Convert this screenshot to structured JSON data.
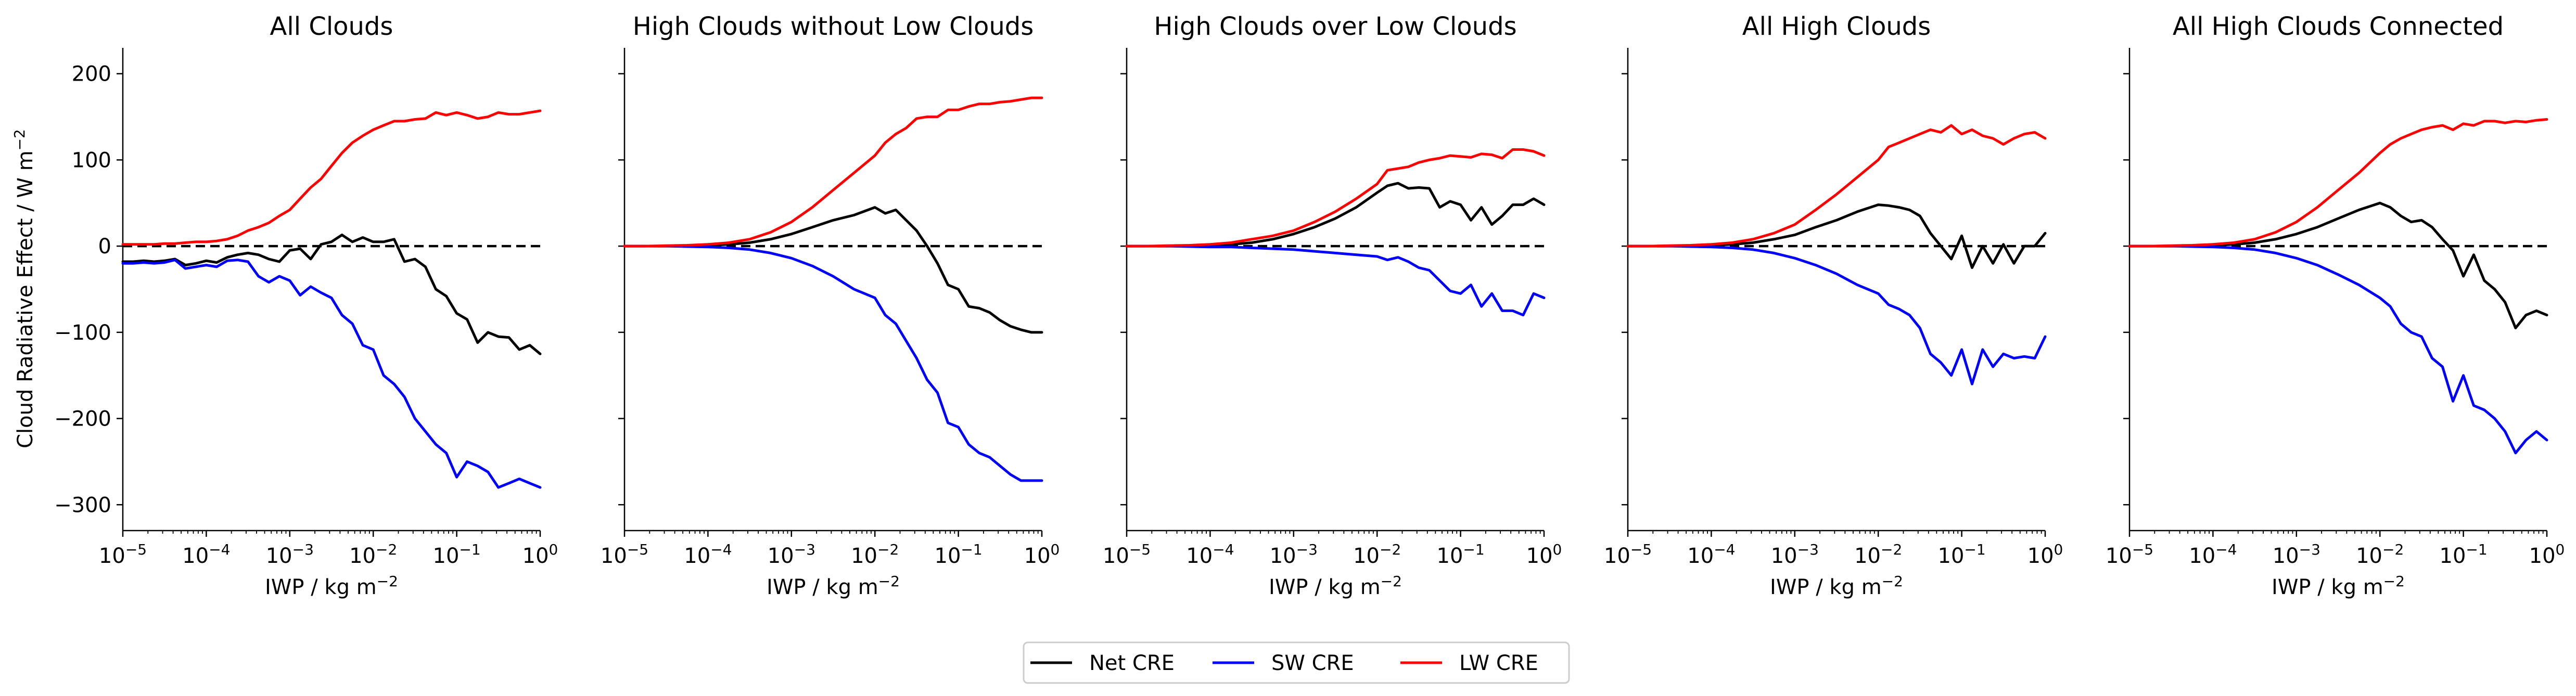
{
  "figure": {
    "ylabel": "Cloud Radiative Effect / W m",
    "ylabel_sup": "−2",
    "xlabel": "IWP / kg m",
    "xlabel_sup": "−2",
    "x_ticks": [
      {
        "base": "10",
        "exp": "−5"
      },
      {
        "base": "10",
        "exp": "−4"
      },
      {
        "base": "10",
        "exp": "−3"
      },
      {
        "base": "10",
        "exp": "−2"
      },
      {
        "base": "10",
        "exp": "−1"
      },
      {
        "base": "10",
        "exp": "0"
      }
    ],
    "y_ticks": [
      "200",
      "100",
      "0",
      "−100",
      "−200",
      "−300"
    ],
    "legend": {
      "placement": "bottom-center",
      "entries": [
        {
          "label": "Net CRE",
          "color": "#000000"
        },
        {
          "label": "SW CRE",
          "color": "#0000ff"
        },
        {
          "label": "LW CRE",
          "color": "#ff0000"
        }
      ]
    }
  },
  "chart_data": [
    {
      "type": "line",
      "title": "All Clouds",
      "xscale": "log",
      "xlim": [
        1e-05,
        1
      ],
      "ylim": [
        -330,
        230
      ],
      "grid": false,
      "zero_line": "dashed",
      "x": [
        1e-05,
        1.33e-05,
        1.78e-05,
        2.37e-05,
        3.16e-05,
        4.22e-05,
        5.62e-05,
        7.5e-05,
        0.0001,
        0.000133,
        0.000178,
        0.000237,
        0.000316,
        0.000422,
        0.000562,
        0.00075,
        0.001,
        0.00133,
        0.00178,
        0.00237,
        0.00316,
        0.00422,
        0.00562,
        0.0075,
        0.01,
        0.0133,
        0.0178,
        0.0237,
        0.0316,
        0.0422,
        0.0562,
        0.075,
        0.1,
        0.133,
        0.178,
        0.237,
        0.316,
        0.422,
        0.562,
        0.75,
        1
      ],
      "series": [
        {
          "name": "Net CRE",
          "color": "#000000",
          "values": [
            -18,
            -18,
            -17,
            -18,
            -17,
            -15,
            -22,
            -20,
            -17,
            -19,
            -13,
            -10,
            -8,
            -10,
            -15,
            -18,
            -5,
            -3,
            -15,
            2,
            5,
            13,
            5,
            10,
            5,
            5,
            8,
            -18,
            -15,
            -24,
            -50,
            -58,
            -78,
            -85,
            -112,
            -100,
            -105,
            -106,
            -120,
            -115,
            -125
          ]
        },
        {
          "name": "SW CRE",
          "color": "#0000ff",
          "values": [
            -20,
            -20,
            -19,
            -20,
            -19,
            -16,
            -26,
            -24,
            -22,
            -24,
            -17,
            -16,
            -18,
            -35,
            -42,
            -35,
            -40,
            -57,
            -47,
            -54,
            -60,
            -80,
            -90,
            -115,
            -120,
            -150,
            -160,
            -175,
            -200,
            -215,
            -230,
            -240,
            -268,
            -250,
            -255,
            -262,
            -280,
            -275,
            -270,
            -275,
            -280
          ]
        },
        {
          "name": "LW CRE",
          "color": "#ff0000",
          "values": [
            2,
            2,
            2,
            2,
            3,
            3,
            4,
            5,
            5,
            6,
            8,
            12,
            18,
            22,
            27,
            35,
            42,
            55,
            68,
            78,
            93,
            108,
            120,
            128,
            135,
            140,
            145,
            145,
            147,
            148,
            155,
            152,
            155,
            152,
            148,
            150,
            155,
            153,
            153,
            155,
            157
          ]
        }
      ]
    },
    {
      "type": "line",
      "title": "High Clouds without Low Clouds",
      "xscale": "log",
      "xlim": [
        1e-05,
        1
      ],
      "ylim": [
        -330,
        230
      ],
      "grid": false,
      "zero_line": "dashed",
      "x": [
        1e-05,
        1.78e-05,
        3.16e-05,
        5.62e-05,
        0.0001,
        0.000178,
        0.000316,
        0.000562,
        0.001,
        0.00178,
        0.00316,
        0.00562,
        0.01,
        0.0133,
        0.0178,
        0.0237,
        0.0316,
        0.0422,
        0.0562,
        0.075,
        0.1,
        0.133,
        0.178,
        0.237,
        0.316,
        0.422,
        0.562,
        0.75,
        1
      ],
      "series": [
        {
          "name": "Net CRE",
          "color": "#000000",
          "values": [
            0,
            0,
            0,
            0.5,
            1,
            2,
            4,
            8,
            14,
            22,
            30,
            36,
            45,
            38,
            42,
            30,
            18,
            0,
            -20,
            -45,
            -50,
            -70,
            -72,
            -77,
            -86,
            -93,
            -97,
            -100,
            -100
          ]
        },
        {
          "name": "SW CRE",
          "color": "#0000ff",
          "values": [
            0,
            0,
            0,
            -0.5,
            -1,
            -2,
            -4,
            -8,
            -14,
            -23,
            -35,
            -50,
            -60,
            -80,
            -90,
            -110,
            -130,
            -155,
            -170,
            -205,
            -210,
            -230,
            -240,
            -245,
            -255,
            -265,
            -272,
            -272,
            -272
          ]
        },
        {
          "name": "LW CRE",
          "color": "#ff0000",
          "values": [
            0,
            0,
            0.5,
            1,
            2,
            4,
            8,
            16,
            28,
            45,
            65,
            85,
            105,
            120,
            130,
            137,
            148,
            150,
            150,
            158,
            158,
            162,
            165,
            165,
            167,
            168,
            170,
            172,
            172
          ]
        }
      ]
    },
    {
      "type": "line",
      "title": "High Clouds over Low Clouds",
      "xscale": "log",
      "xlim": [
        1e-05,
        1
      ],
      "ylim": [
        -330,
        230
      ],
      "grid": false,
      "zero_line": "dashed",
      "x": [
        1e-05,
        1.78e-05,
        3.16e-05,
        5.62e-05,
        0.0001,
        0.000178,
        0.000316,
        0.000562,
        0.001,
        0.00178,
        0.00316,
        0.00562,
        0.01,
        0.0133,
        0.0178,
        0.0237,
        0.0316,
        0.0422,
        0.0562,
        0.075,
        0.1,
        0.133,
        0.178,
        0.237,
        0.316,
        0.422,
        0.562,
        0.75,
        1
      ],
      "series": [
        {
          "name": "Net CRE",
          "color": "#000000",
          "values": [
            0,
            0,
            0,
            0.5,
            1,
            2,
            4,
            8,
            14,
            22,
            32,
            45,
            62,
            70,
            73,
            67,
            68,
            67,
            45,
            52,
            48,
            30,
            45,
            25,
            35,
            48,
            48,
            55,
            48
          ]
        },
        {
          "name": "SW CRE",
          "color": "#0000ff",
          "values": [
            0,
            0,
            0,
            -0.5,
            -1,
            -1,
            -2,
            -3,
            -4,
            -6,
            -8,
            -10,
            -12,
            -16,
            -13,
            -18,
            -25,
            -28,
            -40,
            -52,
            -55,
            -45,
            -70,
            -55,
            -75,
            -75,
            -80,
            -55,
            -60
          ]
        },
        {
          "name": "LW CRE",
          "color": "#ff0000",
          "values": [
            0,
            0,
            0.5,
            1,
            2,
            4,
            8,
            12,
            18,
            28,
            40,
            55,
            72,
            88,
            90,
            92,
            97,
            100,
            102,
            105,
            104,
            103,
            107,
            106,
            102,
            112,
            112,
            110,
            105
          ]
        }
      ]
    },
    {
      "type": "line",
      "title": "All High Clouds",
      "xscale": "log",
      "xlim": [
        1e-05,
        1
      ],
      "ylim": [
        -330,
        230
      ],
      "grid": false,
      "zero_line": "dashed",
      "x": [
        1e-05,
        1.78e-05,
        3.16e-05,
        5.62e-05,
        0.0001,
        0.000178,
        0.000316,
        0.000562,
        0.001,
        0.00178,
        0.00316,
        0.00562,
        0.01,
        0.0133,
        0.0178,
        0.0237,
        0.0316,
        0.0422,
        0.0562,
        0.075,
        0.1,
        0.133,
        0.178,
        0.237,
        0.316,
        0.422,
        0.562,
        0.75,
        1
      ],
      "series": [
        {
          "name": "Net CRE",
          "color": "#000000",
          "values": [
            0,
            0,
            0,
            0.5,
            1,
            2,
            4,
            8,
            13,
            22,
            30,
            40,
            48,
            47,
            45,
            42,
            35,
            15,
            0,
            -15,
            12,
            -25,
            0,
            -20,
            2,
            -20,
            0,
            0,
            15
          ]
        },
        {
          "name": "SW CRE",
          "color": "#0000ff",
          "values": [
            0,
            0,
            0,
            -0.5,
            -1,
            -2,
            -4,
            -8,
            -14,
            -22,
            -32,
            -45,
            -55,
            -68,
            -73,
            -80,
            -95,
            -125,
            -135,
            -150,
            -120,
            -160,
            -120,
            -140,
            -125,
            -130,
            -128,
            -130,
            -105
          ]
        },
        {
          "name": "LW CRE",
          "color": "#ff0000",
          "values": [
            0,
            0,
            0.5,
            1,
            2,
            4,
            8,
            15,
            25,
            42,
            60,
            80,
            100,
            115,
            120,
            125,
            130,
            135,
            132,
            140,
            130,
            135,
            128,
            125,
            118,
            125,
            130,
            132,
            125
          ]
        }
      ]
    },
    {
      "type": "line",
      "title": "All High Clouds Connected",
      "xscale": "log",
      "xlim": [
        1e-05,
        1
      ],
      "ylim": [
        -330,
        230
      ],
      "grid": false,
      "zero_line": "dashed",
      "x": [
        1e-05,
        1.78e-05,
        3.16e-05,
        5.62e-05,
        0.0001,
        0.000178,
        0.000316,
        0.000562,
        0.001,
        0.00178,
        0.00316,
        0.00562,
        0.01,
        0.0133,
        0.0178,
        0.0237,
        0.0316,
        0.0422,
        0.0562,
        0.075,
        0.1,
        0.133,
        0.178,
        0.237,
        0.316,
        0.422,
        0.562,
        0.75,
        1
      ],
      "series": [
        {
          "name": "Net CRE",
          "color": "#000000",
          "values": [
            0,
            0,
            0,
            0.5,
            1,
            2,
            4,
            8,
            14,
            22,
            32,
            42,
            50,
            45,
            35,
            28,
            30,
            22,
            8,
            -5,
            -35,
            -10,
            -40,
            -50,
            -65,
            -95,
            -80,
            -75,
            -80
          ]
        },
        {
          "name": "SW CRE",
          "color": "#0000ff",
          "values": [
            0,
            0,
            0,
            -0.5,
            -1,
            -2,
            -4,
            -8,
            -14,
            -22,
            -33,
            -45,
            -60,
            -70,
            -90,
            -100,
            -105,
            -130,
            -140,
            -180,
            -150,
            -185,
            -190,
            -200,
            -215,
            -240,
            -225,
            -215,
            -225
          ]
        },
        {
          "name": "LW CRE",
          "color": "#ff0000",
          "values": [
            0,
            0,
            0.5,
            1,
            2,
            4,
            8,
            16,
            28,
            45,
            65,
            85,
            108,
            118,
            125,
            130,
            135,
            138,
            140,
            135,
            142,
            140,
            145,
            145,
            143,
            145,
            144,
            146,
            147
          ]
        }
      ]
    }
  ]
}
